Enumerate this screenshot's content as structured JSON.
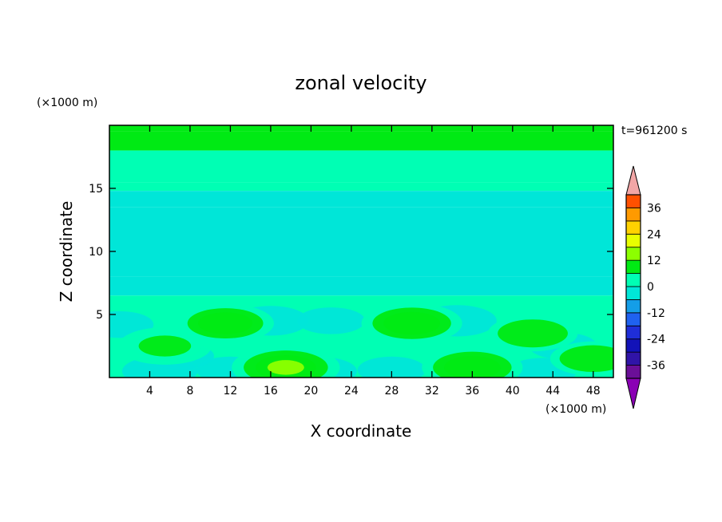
{
  "chart_data": {
    "type": "heatmap",
    "title": "zonal velocity",
    "xlabel": "X coordinate",
    "ylabel": "Z coordinate",
    "x_units": "(×1000 m)",
    "y_units": "(×1000 m)",
    "time_label": "t=961200 s",
    "xlim": [
      0,
      50
    ],
    "ylim": [
      0,
      20
    ],
    "x_ticks": [
      4,
      8,
      12,
      16,
      20,
      24,
      28,
      32,
      36,
      40,
      44,
      48
    ],
    "y_ticks": [
      5,
      10,
      15
    ],
    "colorbar": {
      "levels": [
        -42,
        -36,
        -30,
        -24,
        -18,
        -12,
        -6,
        0,
        6,
        12,
        18,
        24,
        30,
        36,
        42
      ],
      "labeled_levels": [
        36,
        24,
        12,
        0,
        -12,
        -24,
        -36
      ],
      "colors": [
        "#6b0f98",
        "#3014a8",
        "#1212b8",
        "#1f2ed8",
        "#1f62f0",
        "#149ee8",
        "#00e6d8",
        "#00ffb4",
        "#00ea14",
        "#8cff00",
        "#e8ff00",
        "#ffd200",
        "#ff9a00",
        "#ff5000",
        "#e60000"
      ],
      "extend_low_color": "#8a00b4",
      "extend_high_color": "#f2a6a6"
    },
    "bands": [
      {
        "z": [
          19.5,
          20.0
        ],
        "u": 6
      },
      {
        "z": [
          18.0,
          19.5
        ],
        "u": 8
      },
      {
        "z": [
          15.5,
          18.0
        ],
        "u": 4
      },
      {
        "z": [
          14.8,
          15.5
        ],
        "u": 1
      },
      {
        "z": [
          13.5,
          14.8
        ],
        "u": -1
      },
      {
        "z": [
          8.0,
          13.5
        ],
        "u": -4
      },
      {
        "z": [
          6.5,
          8.0
        ],
        "u": -1
      },
      {
        "z": [
          0.0,
          6.5
        ],
        "u": 2
      }
    ],
    "features": [
      {
        "x": 17.5,
        "z": 0.8,
        "u": 12
      },
      {
        "x": 11.5,
        "z": 4.3,
        "u": 9
      },
      {
        "x": 30.0,
        "z": 4.3,
        "u": 10
      },
      {
        "x": 36.0,
        "z": 0.8,
        "u": 10
      },
      {
        "x": 5.5,
        "z": 2.5,
        "u": 8
      },
      {
        "x": 42.0,
        "z": 3.5,
        "u": 7
      },
      {
        "x": 48.0,
        "z": 1.5,
        "u": 6
      },
      {
        "x": 16.0,
        "z": 4.5,
        "u": -3
      },
      {
        "x": 34.5,
        "z": 4.5,
        "u": -4
      },
      {
        "x": 22.0,
        "z": 4.5,
        "u": -1
      },
      {
        "x": 1.0,
        "z": 4.2,
        "u": -1
      },
      {
        "x": 5.0,
        "z": 0.5,
        "u": -3
      },
      {
        "x": 12.0,
        "z": 0.6,
        "u": -1
      },
      {
        "x": 21.0,
        "z": 0.5,
        "u": -2
      },
      {
        "x": 28.0,
        "z": 0.6,
        "u": -1
      },
      {
        "x": 43.0,
        "z": 0.5,
        "u": -1
      },
      {
        "x": 7.0,
        "z": 1.7,
        "u": -1
      },
      {
        "x": 45.0,
        "z": 2.5,
        "u": -1
      }
    ]
  }
}
